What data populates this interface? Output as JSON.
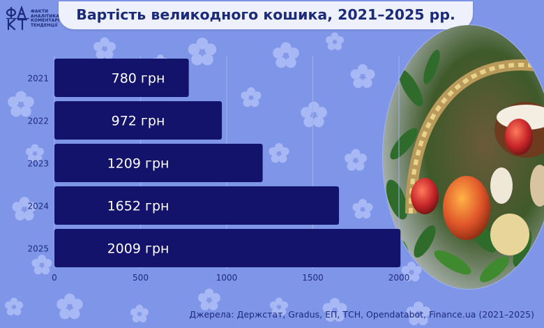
{
  "logo": {
    "mark": "ФАКТ",
    "tagline_lines": [
      "Факти",
      "Аналітика",
      "Коментарі",
      "Тенденції"
    ]
  },
  "title": "Вартість великодного кошика, 2021–2025 рр.",
  "source": "Джерела: Держстат, Gradus, ЕП, ТСН, Opendatabot, Finance.ua (2021–2025)",
  "colors": {
    "background": "#7f95e8",
    "bar": "#14136b",
    "bar_label": "#ffffff",
    "text_dark": "#1c2a7a",
    "title_bg": "#eef0fb"
  },
  "chart_data": {
    "type": "bar",
    "orientation": "horizontal",
    "categories": [
      "2021",
      "2022",
      "2023",
      "2024",
      "2025"
    ],
    "values": [
      780,
      972,
      1209,
      1652,
      2009
    ],
    "data_labels": [
      "780 грн",
      "972 грн",
      "1209 грн",
      "1652 грн",
      "2009 грн"
    ],
    "xlim": [
      0,
      2000
    ],
    "x_ticks": [
      0,
      500,
      1000,
      1500,
      2000
    ],
    "grid": "vertical",
    "title": "Вартість великодного кошика, 2021–2025 рр."
  }
}
